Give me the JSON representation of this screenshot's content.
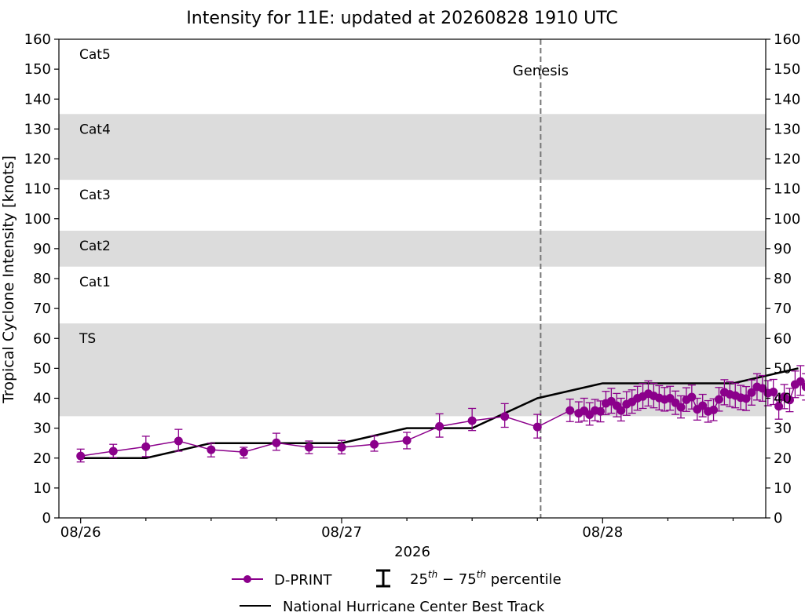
{
  "chart_data": {
    "type": "line",
    "title": "Intensity for 11E: updated at 20260828 1910 UTC",
    "ylabel": "Tropical Cyclone Intensity [knots]",
    "xlabel": "2026",
    "ylim": [
      0,
      160
    ],
    "yticks": [
      0,
      10,
      20,
      30,
      40,
      50,
      60,
      70,
      80,
      90,
      100,
      110,
      120,
      130,
      140,
      150,
      160
    ],
    "x_unit": "hours since 08/26 00 UTC",
    "xlim": [
      -2,
      63
    ],
    "xtick_labels": [
      {
        "x": 0,
        "label": "08/26"
      },
      {
        "x": 24,
        "label": "08/27"
      },
      {
        "x": 48,
        "label": "08/28"
      }
    ],
    "minor_ticks_every_hours": 6,
    "grid": false,
    "legend_position": "bottom-center",
    "category_bands": [
      {
        "label": "TS",
        "from": 34,
        "to": 65,
        "shaded": true
      },
      {
        "label": "Cat1",
        "from": 65,
        "to": 84,
        "shaded": false
      },
      {
        "label": "Cat2",
        "from": 84,
        "to": 96,
        "shaded": true
      },
      {
        "label": "Cat3",
        "from": 96,
        "to": 113,
        "shaded": false
      },
      {
        "label": "Cat4",
        "from": 113,
        "to": 135,
        "shaded": true
      },
      {
        "label": "Cat5",
        "from": 135,
        "to": 160,
        "shaded": false
      }
    ],
    "genesis": {
      "label": "Genesis",
      "x": 42.3
    },
    "colors": {
      "dprint": "#8b008b",
      "best_track": "#000000",
      "band": "#dcdcdc",
      "genesis": "#708090"
    },
    "legend": {
      "dprint_label": "D-PRINT",
      "percentile_label": "25th − 75th percentile",
      "best_track_label": "National Hurricane Center Best Track"
    },
    "series": [
      {
        "name": "National Hurricane Center Best Track",
        "x": [
          0,
          6,
          12,
          18,
          24,
          30,
          36,
          42,
          48,
          54,
          60,
          66
        ],
        "y": [
          20,
          20,
          25,
          25,
          25,
          30,
          30,
          40,
          45,
          45,
          45,
          50
        ]
      },
      {
        "name": "D-PRINT",
        "points": [
          {
            "x": 0,
            "y": 20.7,
            "lo": 18.7,
            "hi": 23.0
          },
          {
            "x": 3,
            "y": 22.3,
            "lo": 20.2,
            "hi": 24.6
          },
          {
            "x": 6,
            "y": 23.8,
            "lo": 20.5,
            "hi": 27.3
          },
          {
            "x": 9,
            "y": 25.7,
            "lo": 22.3,
            "hi": 29.6
          },
          {
            "x": 12,
            "y": 22.8,
            "lo": 20.4,
            "hi": 25.0
          },
          {
            "x": 15,
            "y": 22.0,
            "lo": 20.0,
            "hi": 23.6
          },
          {
            "x": 18,
            "y": 25.1,
            "lo": 22.6,
            "hi": 28.3
          },
          {
            "x": 21,
            "y": 23.6,
            "lo": 21.5,
            "hi": 25.7
          },
          {
            "x": 24,
            "y": 23.6,
            "lo": 21.4,
            "hi": 25.9
          },
          {
            "x": 27,
            "y": 24.6,
            "lo": 22.3,
            "hi": 27.4
          },
          {
            "x": 30,
            "y": 25.9,
            "lo": 23.1,
            "hi": 28.6
          },
          {
            "x": 33,
            "y": 30.6,
            "lo": 27.0,
            "hi": 34.8
          },
          {
            "x": 36,
            "y": 32.5,
            "lo": 29.2,
            "hi": 36.6
          },
          {
            "x": 39,
            "y": 33.9,
            "lo": 30.3,
            "hi": 38.2
          },
          {
            "x": 42,
            "y": 30.4,
            "lo": 26.7,
            "hi": 34.6
          },
          {
            "x": 45.0,
            "y": 35.9,
            "lo": 32.2,
            "hi": 39.7
          },
          {
            "x": 45.8,
            "y": 35.0,
            "lo": 32.0,
            "hi": 38.8
          },
          {
            "x": 46.3,
            "y": 35.8,
            "lo": 32.4,
            "hi": 40.0
          },
          {
            "x": 46.8,
            "y": 34.5,
            "lo": 31.0,
            "hi": 38.5
          },
          {
            "x": 47.3,
            "y": 35.9,
            "lo": 32.5,
            "hi": 39.6
          },
          {
            "x": 47.8,
            "y": 35.6,
            "lo": 32.1,
            "hi": 39.1
          },
          {
            "x": 48.3,
            "y": 38.3,
            "lo": 34.5,
            "hi": 42.3
          },
          {
            "x": 48.8,
            "y": 39.0,
            "lo": 35.0,
            "hi": 43.3
          },
          {
            "x": 49.3,
            "y": 37.5,
            "lo": 33.8,
            "hi": 41.6
          },
          {
            "x": 49.7,
            "y": 35.9,
            "lo": 32.4,
            "hi": 40.0
          },
          {
            "x": 50.2,
            "y": 38.0,
            "lo": 34.3,
            "hi": 42.2
          },
          {
            "x": 50.7,
            "y": 38.8,
            "lo": 35.0,
            "hi": 42.8
          },
          {
            "x": 51.2,
            "y": 40.0,
            "lo": 36.0,
            "hi": 44.0
          },
          {
            "x": 51.7,
            "y": 40.6,
            "lo": 36.6,
            "hi": 44.9
          },
          {
            "x": 52.2,
            "y": 41.5,
            "lo": 37.4,
            "hi": 45.8
          },
          {
            "x": 52.7,
            "y": 40.8,
            "lo": 36.8,
            "hi": 45.0
          },
          {
            "x": 53.2,
            "y": 40.1,
            "lo": 36.1,
            "hi": 44.2
          },
          {
            "x": 53.7,
            "y": 39.6,
            "lo": 35.7,
            "hi": 43.6
          },
          {
            "x": 54.2,
            "y": 40.0,
            "lo": 36.0,
            "hi": 44.0
          },
          {
            "x": 54.7,
            "y": 38.5,
            "lo": 34.6,
            "hi": 42.4
          },
          {
            "x": 55.2,
            "y": 37.0,
            "lo": 33.4,
            "hi": 40.8
          },
          {
            "x": 55.7,
            "y": 39.5,
            "lo": 35.6,
            "hi": 43.5
          },
          {
            "x": 56.2,
            "y": 40.4,
            "lo": 36.4,
            "hi": 44.4
          },
          {
            "x": 56.7,
            "y": 36.3,
            "lo": 32.7,
            "hi": 40.0
          },
          {
            "x": 57.2,
            "y": 37.5,
            "lo": 33.8,
            "hi": 41.3
          },
          {
            "x": 57.7,
            "y": 35.6,
            "lo": 32.0,
            "hi": 39.2
          },
          {
            "x": 58.2,
            "y": 36.1,
            "lo": 32.5,
            "hi": 39.8
          },
          {
            "x": 58.7,
            "y": 39.6,
            "lo": 35.7,
            "hi": 43.6
          },
          {
            "x": 59.2,
            "y": 42.0,
            "lo": 37.8,
            "hi": 46.2
          },
          {
            "x": 59.7,
            "y": 41.3,
            "lo": 37.2,
            "hi": 45.5
          },
          {
            "x": 60.2,
            "y": 40.9,
            "lo": 36.8,
            "hi": 45.0
          },
          {
            "x": 60.7,
            "y": 40.2,
            "lo": 36.2,
            "hi": 44.3
          },
          {
            "x": 61.2,
            "y": 39.9,
            "lo": 35.9,
            "hi": 43.9
          },
          {
            "x": 61.7,
            "y": 41.9,
            "lo": 37.7,
            "hi": 46.1
          },
          {
            "x": 62.2,
            "y": 43.8,
            "lo": 39.4,
            "hi": 48.2
          },
          {
            "x": 62.7,
            "y": 43.3,
            "lo": 39.0,
            "hi": 47.6
          },
          {
            "x": 63.2,
            "y": 41.7,
            "lo": 37.5,
            "hi": 45.9
          },
          {
            "x": 63.7,
            "y": 42.1,
            "lo": 37.9,
            "hi": 46.3
          },
          {
            "x": 64.2,
            "y": 37.3,
            "lo": 33.0,
            "hi": 41.0
          },
          {
            "x": 64.7,
            "y": 40.5,
            "lo": 36.5,
            "hi": 44.6
          },
          {
            "x": 65.2,
            "y": 39.4,
            "lo": 35.5,
            "hi": 43.3
          },
          {
            "x": 65.7,
            "y": 44.6,
            "lo": 40.2,
            "hi": 49.1
          },
          {
            "x": 66.2,
            "y": 45.6,
            "lo": 41.0,
            "hi": 50.9
          },
          {
            "x": 66.7,
            "y": 43.8,
            "lo": 39.4,
            "hi": 48.2
          }
        ]
      }
    ]
  }
}
